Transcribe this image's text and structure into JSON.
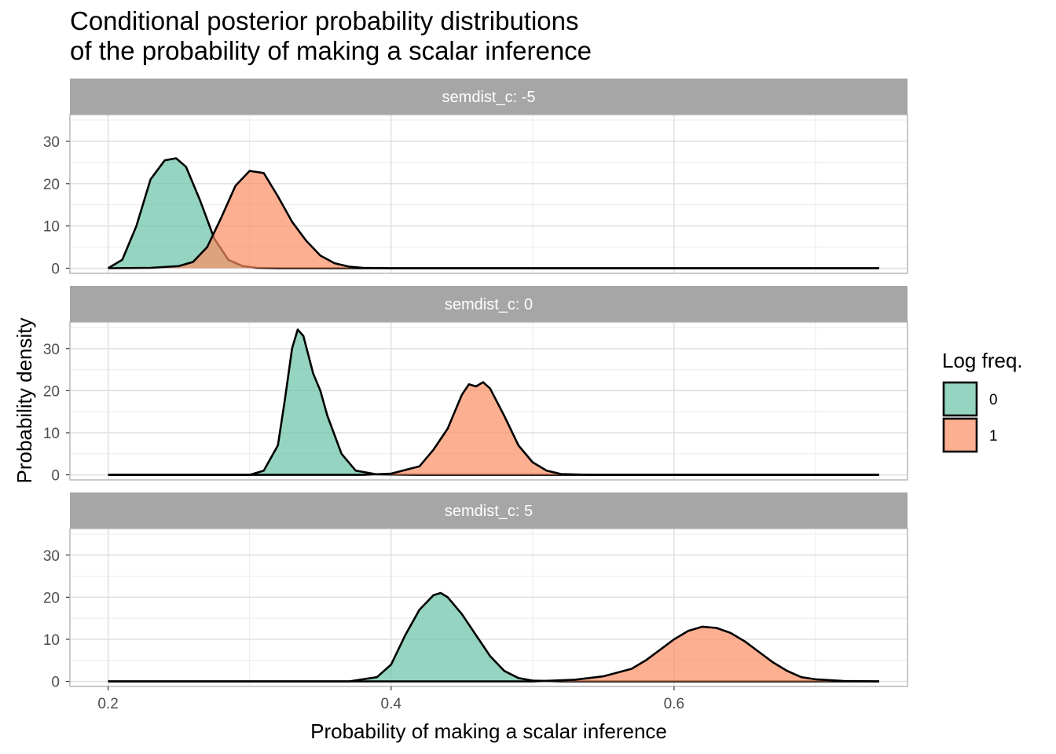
{
  "chart_data": {
    "type": "area",
    "title_line1": "Conditional posterior probability distributions",
    "title_line2": "of the probability of making a scalar inference",
    "xlabel": "Probability of making a scalar inference",
    "ylabel": "Probability density",
    "xlim": [
      0.173,
      0.765
    ],
    "ylim": [
      -1.2,
      36.3
    ],
    "x_ticks": [
      {
        "value": 0.2,
        "label": "0.2"
      },
      {
        "value": 0.4,
        "label": "0.4"
      },
      {
        "value": 0.6,
        "label": "0.6"
      }
    ],
    "y_ticks": [
      {
        "value": 0,
        "label": "0"
      },
      {
        "value": 10,
        "label": "10"
      },
      {
        "value": 20,
        "label": "20"
      },
      {
        "value": 30,
        "label": "30"
      }
    ],
    "grid": true,
    "legend": {
      "title": "Log freq.",
      "position": "right",
      "entries": [
        {
          "label": "0",
          "color": "#66C2A5"
        },
        {
          "label": "1",
          "color": "#FC8D62"
        }
      ]
    },
    "fill_opacity": 0.7,
    "outline_color": "#000000",
    "strip_color": "#A6A6A6",
    "panels": [
      {
        "strip_label": "semdist_c: -5",
        "series": [
          {
            "group": "0",
            "color": "#66C2A5",
            "x": [
              0.2,
              0.21,
              0.22,
              0.23,
              0.24,
              0.248,
              0.255,
              0.265,
              0.275,
              0.285,
              0.295,
              0.305,
              0.32,
              0.34,
              0.745
            ],
            "y": [
              0,
              2,
              10,
              21,
              25.5,
              26,
              24,
              16,
              7,
              2,
              0.5,
              0.1,
              0,
              0,
              0
            ]
          },
          {
            "group": "1",
            "color": "#FC8D62",
            "x": [
              0.2,
              0.23,
              0.25,
              0.26,
              0.27,
              0.28,
              0.29,
              0.3,
              0.31,
              0.32,
              0.33,
              0.34,
              0.35,
              0.36,
              0.37,
              0.38,
              0.4,
              0.745
            ],
            "y": [
              0,
              0.1,
              0.5,
              1.5,
              5,
              12,
              19.5,
              23,
              22.5,
              17,
              11,
              6.5,
              3,
              1.2,
              0.4,
              0.1,
              0,
              0
            ]
          }
        ]
      },
      {
        "strip_label": "semdist_c: 0",
        "series": [
          {
            "group": "0",
            "color": "#66C2A5",
            "x": [
              0.2,
              0.3,
              0.31,
              0.32,
              0.325,
              0.33,
              0.334,
              0.338,
              0.345,
              0.35,
              0.355,
              0.365,
              0.375,
              0.39,
              0.42,
              0.745
            ],
            "y": [
              0,
              0,
              1,
              7,
              18,
              30,
              34.5,
              33,
              24,
              20,
              14,
              5,
              1,
              0.1,
              0,
              0
            ]
          },
          {
            "group": "1",
            "color": "#FC8D62",
            "x": [
              0.2,
              0.38,
              0.4,
              0.42,
              0.43,
              0.44,
              0.45,
              0.455,
              0.46,
              0.465,
              0.47,
              0.48,
              0.49,
              0.5,
              0.51,
              0.52,
              0.54,
              0.745
            ],
            "y": [
              0,
              0,
              0.3,
              2,
              6,
              11,
              19,
              21.5,
              21,
              22,
              20.5,
              14,
              7,
              3,
              1,
              0.2,
              0,
              0
            ]
          }
        ]
      },
      {
        "strip_label": "semdist_c: 5",
        "series": [
          {
            "group": "0",
            "color": "#66C2A5",
            "x": [
              0.2,
              0.37,
              0.39,
              0.4,
              0.41,
              0.42,
              0.43,
              0.435,
              0.44,
              0.45,
              0.46,
              0.47,
              0.48,
              0.49,
              0.5,
              0.52,
              0.745
            ],
            "y": [
              0,
              0,
              1,
              4,
              11,
              17,
              20.5,
              21,
              20,
              16,
              11,
              6,
              2.5,
              0.8,
              0.2,
              0,
              0
            ]
          },
          {
            "group": "1",
            "color": "#FC8D62",
            "x": [
              0.2,
              0.5,
              0.53,
              0.55,
              0.57,
              0.58,
              0.59,
              0.6,
              0.61,
              0.62,
              0.63,
              0.64,
              0.65,
              0.66,
              0.67,
              0.68,
              0.69,
              0.7,
              0.72,
              0.745
            ],
            "y": [
              0,
              0,
              0.4,
              1.2,
              3,
              5,
              7.5,
              10,
              12,
              13,
              12.7,
              11.5,
              9.5,
              7,
              4.5,
              2.5,
              1,
              0.5,
              0.1,
              0
            ]
          }
        ]
      }
    ]
  }
}
